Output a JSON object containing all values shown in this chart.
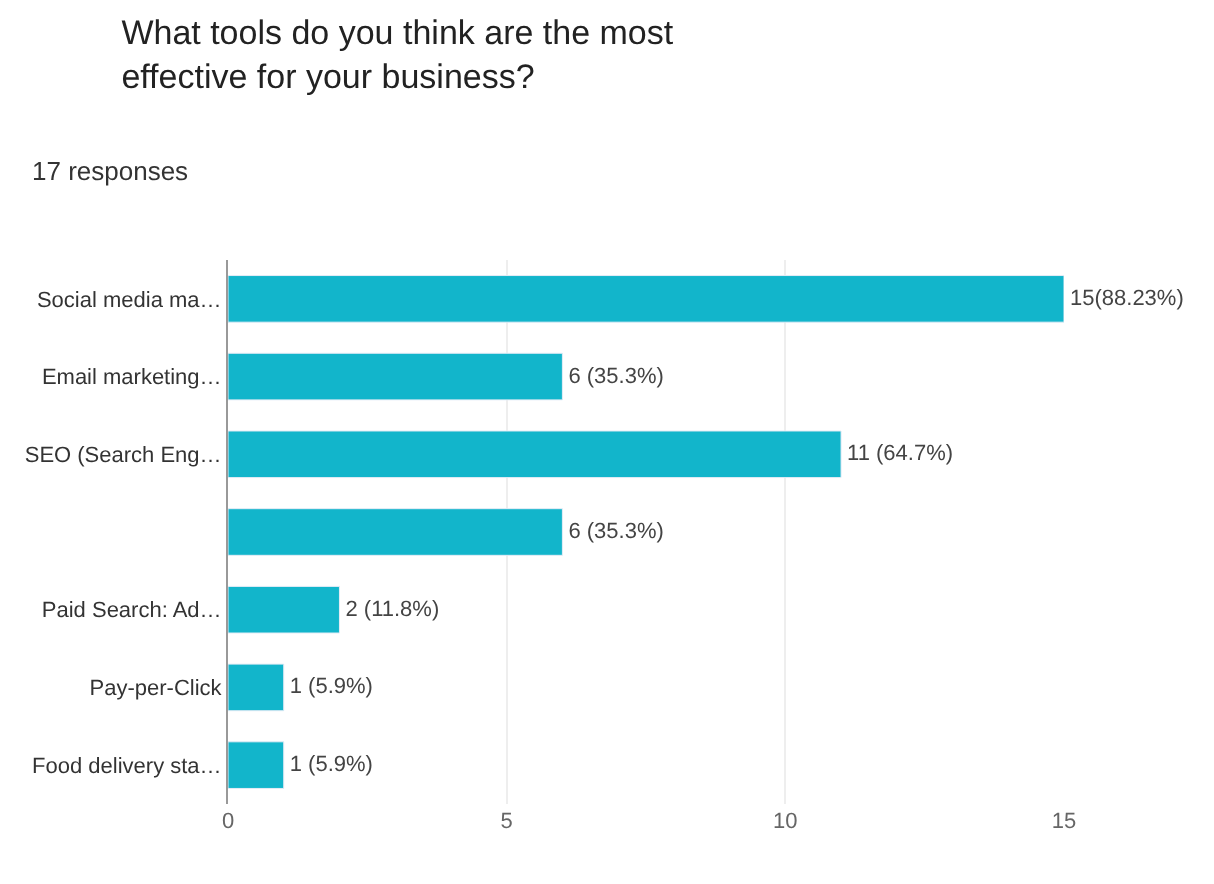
{
  "chart_data": {
    "type": "bar",
    "orientation": "horizontal",
    "title": "What tools do you think are the most\neffective for your business?",
    "subtitle": "17 responses",
    "categories": [
      "Social media ma…",
      "Email marketing…",
      "SEO (Search Eng…",
      null,
      "Paid Search: Ad…",
      "Pay-per-Click",
      "Food delivery sta…"
    ],
    "values": [
      15,
      6,
      11,
      6,
      2,
      1,
      1
    ],
    "color": "#12b5cb",
    "value_labels": [
      "15(88.23%)",
      "6 (35.3%)",
      "11 (64.7%)",
      "6 (35.3%)",
      "2 (11.8%)",
      "1 (5.9%)",
      "1 (5.9%)"
    ],
    "xlim": [
      0,
      15
    ],
    "xticks": [
      0,
      5,
      10,
      15
    ],
    "grid": "x"
  }
}
